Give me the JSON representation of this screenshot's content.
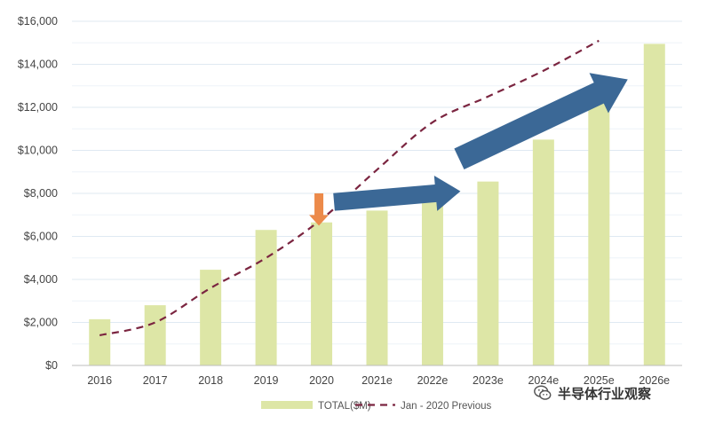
{
  "chart_data": {
    "type": "bar",
    "categories": [
      "2016",
      "2017",
      "2018",
      "2019",
      "2020",
      "2021e",
      "2022e",
      "2023e",
      "2024e",
      "2025e",
      "2026e"
    ],
    "series": [
      {
        "name": "TOTAL($M)",
        "type": "bar",
        "color": "#dde6a6",
        "values": [
          2150,
          2800,
          4450,
          6300,
          6650,
          7200,
          7700,
          8550,
          10500,
          12650,
          14950
        ]
      },
      {
        "name": "Jan - 2020 Previous",
        "type": "line",
        "style": "dashed",
        "color": "#7b2540",
        "values": [
          1400,
          2000,
          3600,
          5000,
          6800,
          9100,
          11300,
          12500,
          13700,
          15100,
          null
        ]
      }
    ],
    "title": "",
    "xlabel": "",
    "ylabel": "",
    "ylim": [
      0,
      16000
    ],
    "yticks": [
      "$0",
      "$2,000",
      "$4,000",
      "$6,000",
      "$8,000",
      "$10,000",
      "$12,000",
      "$14,000",
      "$16,000"
    ],
    "grid": true,
    "legend": "bottom",
    "annotations": [
      {
        "kind": "arrow",
        "direction": "down",
        "color": "#ec8a4a",
        "at_category": "2020",
        "y_from": 8000,
        "y_to": 6500
      },
      {
        "kind": "arrow",
        "direction": "right",
        "color": "#3b6896",
        "from": [
          "2020",
          7600
        ],
        "to": [
          "2023e",
          8100
        ]
      },
      {
        "kind": "arrow",
        "direction": "up-right",
        "color": "#3b6896",
        "from": [
          "2022e",
          9600
        ],
        "to": [
          "2026e",
          13300
        ]
      }
    ]
  },
  "watermark": {
    "text": "半导体行业观察",
    "icon": "wechat-icon"
  }
}
